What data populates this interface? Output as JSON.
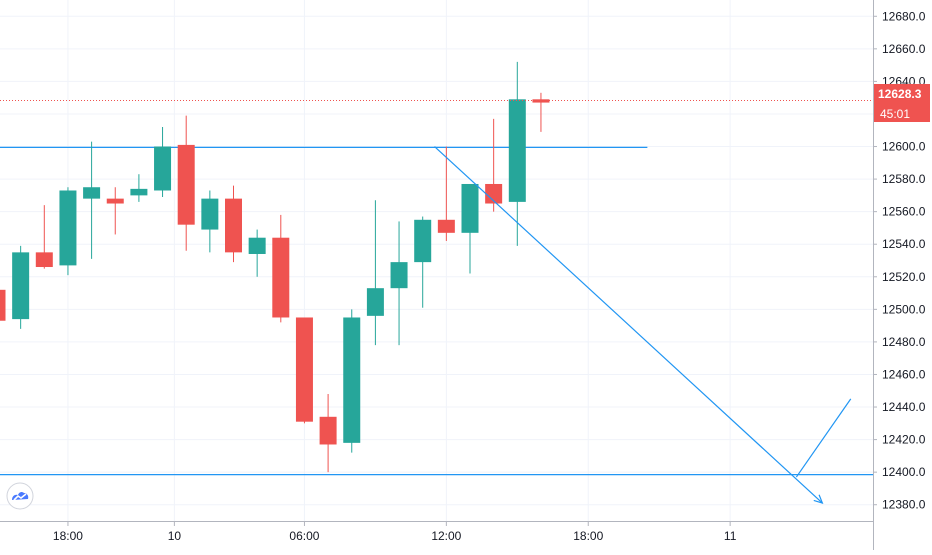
{
  "chart_data": {
    "type": "candlestick",
    "price_axis": {
      "range": [
        12370,
        12690
      ],
      "ticks": [
        12380,
        12400,
        12420,
        12440,
        12460,
        12480,
        12500,
        12520,
        12540,
        12560,
        12580,
        12600,
        12620,
        12640,
        12660,
        12680
      ],
      "tick_labels": [
        "12380.0",
        "12400.0",
        "12420.0",
        "12440.0",
        "12460.0",
        "12480.0",
        "12500.0",
        "12520.0",
        "12540.0",
        "12560.0",
        "12580.0",
        "12600.0",
        "12620.0",
        "12640.0",
        "12660.0",
        "12680.0"
      ]
    },
    "time_axis": {
      "tick_labels": [
        "18:00",
        "10",
        "06:00",
        "12:00",
        "18:00",
        "11"
      ],
      "tick_index": [
        3,
        7.5,
        13,
        19,
        25,
        31
      ]
    },
    "grid": true,
    "candles": [
      {
        "o": 12512,
        "h": 12525,
        "l": 12493,
        "c": 12493
      },
      {
        "o": 12494,
        "h": 12539,
        "l": 12488,
        "c": 12535
      },
      {
        "o": 12535,
        "h": 12564,
        "l": 12525,
        "c": 12526
      },
      {
        "o": 12527,
        "h": 12575,
        "l": 12521,
        "c": 12573
      },
      {
        "o": 12568,
        "h": 12603,
        "l": 12531,
        "c": 12575
      },
      {
        "o": 12568,
        "h": 12575,
        "l": 12546,
        "c": 12565
      },
      {
        "o": 12570,
        "h": 12583,
        "l": 12566,
        "c": 12574
      },
      {
        "o": 12573,
        "h": 12612,
        "l": 12569,
        "c": 12600
      },
      {
        "o": 12601,
        "h": 12619,
        "l": 12536,
        "c": 12552
      },
      {
        "o": 12549,
        "h": 12573,
        "l": 12535,
        "c": 12568
      },
      {
        "o": 12568,
        "h": 12576,
        "l": 12529,
        "c": 12535
      },
      {
        "o": 12534,
        "h": 12549,
        "l": 12520,
        "c": 12544
      },
      {
        "o": 12544,
        "h": 12558,
        "l": 12492,
        "c": 12495
      },
      {
        "o": 12495,
        "h": 12495,
        "l": 12430,
        "c": 12431
      },
      {
        "o": 12434,
        "h": 12448,
        "l": 12400,
        "c": 12417
      },
      {
        "o": 12418,
        "h": 12500,
        "l": 12412,
        "c": 12495
      },
      {
        "o": 12496,
        "h": 12567,
        "l": 12478,
        "c": 12513
      },
      {
        "o": 12513,
        "h": 12554,
        "l": 12478,
        "c": 12529
      },
      {
        "o": 12529,
        "h": 12557,
        "l": 12501,
        "c": 12555
      },
      {
        "o": 12555,
        "h": 12600,
        "l": 12542,
        "c": 12547
      },
      {
        "o": 12547,
        "h": 12577,
        "l": 12522,
        "c": 12577
      },
      {
        "o": 12577,
        "h": 12617,
        "l": 12560,
        "c": 12565
      },
      {
        "o": 12566,
        "h": 12652,
        "l": 12539,
        "c": 12629
      },
      {
        "o": 12629,
        "h": 12633,
        "l": 12609,
        "c": 12627
      }
    ],
    "horizontal_lines": [
      {
        "price": 12599.5,
        "from_index": -1,
        "to_index": 27.5
      },
      {
        "price": 12398.5,
        "from_index": -1,
        "to_index": 40
      }
    ],
    "trend_lines": [
      {
        "from": {
          "index": 18.5,
          "price": 12600
        },
        "to": {
          "index": 34.9,
          "price": 12381
        },
        "arrow": true
      },
      {
        "from": {
          "index": 33.8,
          "price": 12397
        },
        "to": {
          "index": 36.1,
          "price": 12445
        },
        "arrow": false
      }
    ],
    "current_price": {
      "value": 12628.3,
      "label": "12628.3",
      "countdown": "45:01"
    }
  }
}
